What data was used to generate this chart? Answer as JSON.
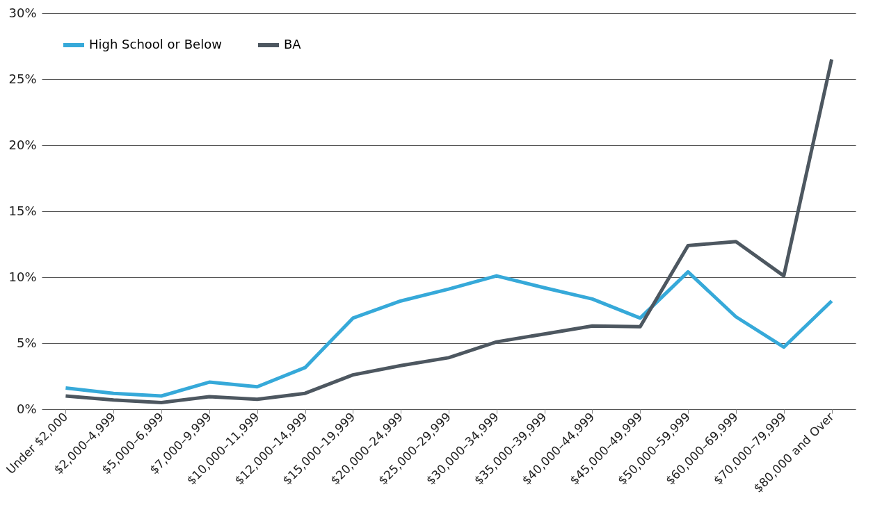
{
  "chart_data": {
    "type": "line",
    "categories": [
      "Under $2,000",
      "$2,000–4,999",
      "$5,000–6,999",
      "$7,000–9,999",
      "$10,000–11,999",
      "$12,000–14,999",
      "$15,000–19,999",
      "$20,000–24,999",
      "$25,000–29,999",
      "$30,000–34,999",
      "$35,000–39,999",
      "$40,000–44,999",
      "$45,000–49,999",
      "$50,000–59,999",
      "$60,000–69,999",
      "$70,000–79,999",
      "$80,000 and Over"
    ],
    "series": [
      {
        "name": "High School or Below",
        "color": "#36a9d9",
        "values": [
          1.6,
          1.2,
          1.0,
          2.05,
          1.7,
          3.15,
          6.9,
          8.2,
          9.1,
          10.1,
          9.2,
          8.35,
          6.9,
          10.4,
          7.0,
          4.7,
          8.2
        ]
      },
      {
        "name": "BA",
        "color": "#4d5760",
        "values": [
          1.0,
          0.7,
          0.5,
          0.95,
          0.75,
          1.2,
          2.6,
          3.3,
          3.9,
          5.1,
          5.7,
          6.3,
          6.25,
          12.4,
          12.7,
          10.1,
          26.5
        ]
      }
    ],
    "ylim": [
      0,
      30
    ],
    "yticks": [
      {
        "value": 0,
        "label": "0%"
      },
      {
        "value": 5,
        "label": "5%"
      },
      {
        "value": 10,
        "label": "10%"
      },
      {
        "value": 15,
        "label": "15%"
      },
      {
        "value": 20,
        "label": "20%"
      },
      {
        "value": 25,
        "label": "25%"
      },
      {
        "value": 30,
        "label": "30%"
      }
    ],
    "grid": "y",
    "legend": "top left",
    "line_style": "solid",
    "marker": "none"
  }
}
